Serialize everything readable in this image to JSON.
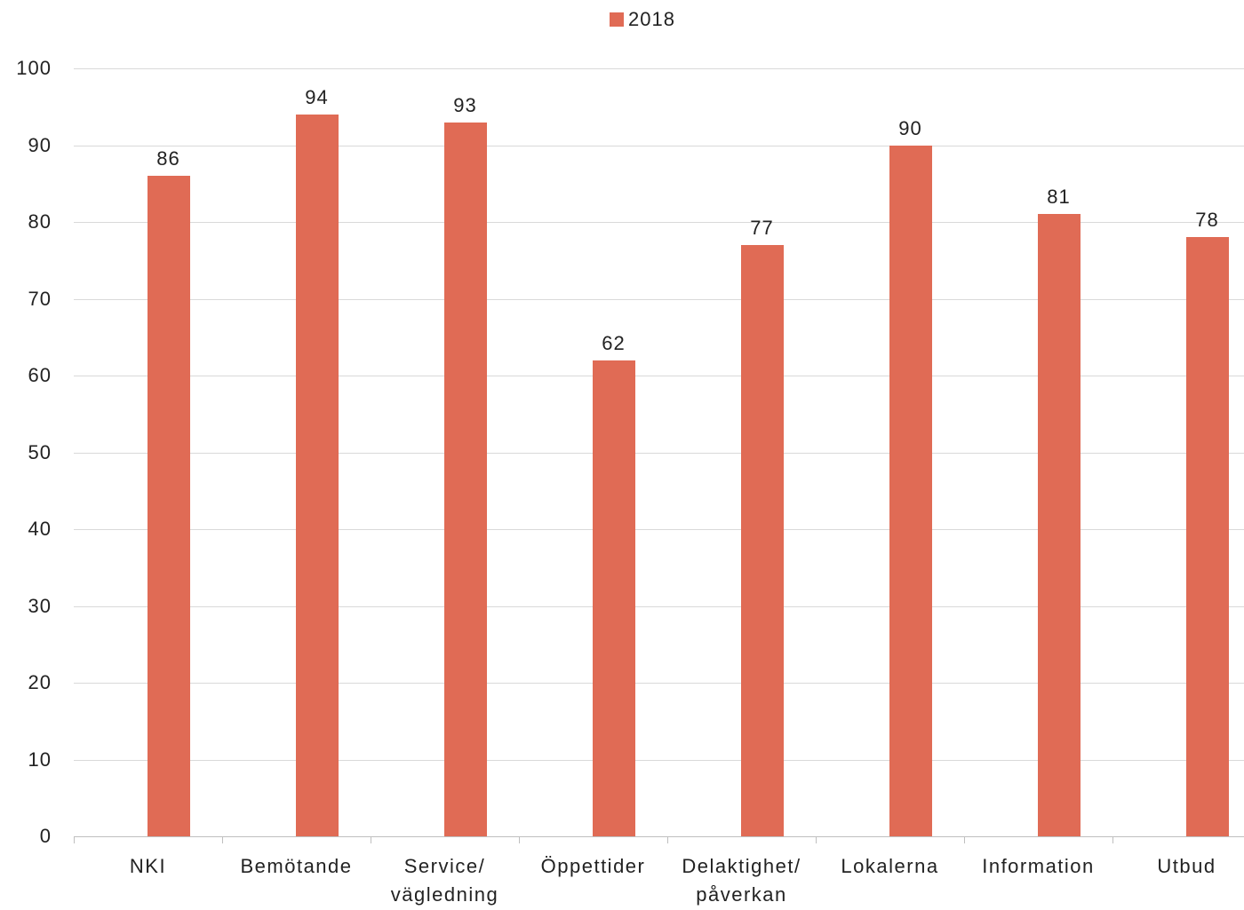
{
  "chart_data": {
    "type": "bar",
    "categories": [
      "NKI",
      "Bemötande",
      "Service/\nvägledning",
      "Öppettider",
      "Delaktighet/\npåverkan",
      "Lokalerna",
      "Information",
      "Utbud"
    ],
    "series": [
      {
        "name": "2018",
        "values": [
          86,
          94,
          93,
          62,
          77,
          90,
          81,
          78
        ],
        "color": "#E06B55"
      }
    ],
    "ylim": [
      0,
      100
    ],
    "yticks": [
      0,
      10,
      20,
      30,
      40,
      50,
      60,
      70,
      80,
      90,
      100
    ],
    "grid": true,
    "legend": "top-center",
    "data_labels": true
  }
}
